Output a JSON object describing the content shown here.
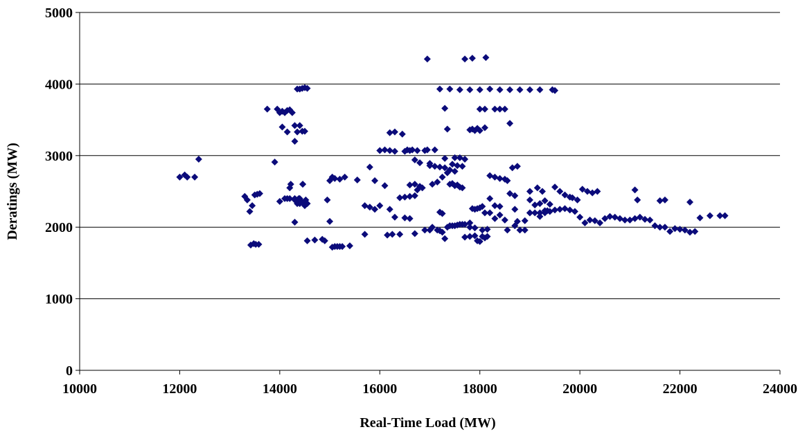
{
  "chart_data": {
    "type": "scatter",
    "title": "",
    "xlabel": "Real-Time Load (MW)",
    "ylabel": "Deratings (MW)",
    "xlim": [
      10000,
      24000
    ],
    "ylim": [
      0,
      5000
    ],
    "xticks": [
      10000,
      12000,
      14000,
      16000,
      18000,
      20000,
      22000,
      24000
    ],
    "yticks": [
      0,
      1000,
      2000,
      3000,
      4000,
      5000
    ],
    "grid": "horizontal",
    "legend": "none",
    "marker": "diamond",
    "marker_color": "#0b0b7a",
    "x": [
      12000,
      12100,
      12150,
      12300,
      12380,
      13300,
      13350,
      13400,
      13450,
      13500,
      13550,
      13600,
      13420,
      13480,
      13520,
      13580,
      13750,
      13900,
      13950,
      14000,
      14050,
      14100,
      14150,
      14200,
      14250,
      14050,
      14150,
      14300,
      14350,
      14400,
      14450,
      14500,
      14300,
      14350,
      14400,
      14450,
      14500,
      14550,
      14150,
      14200,
      14220,
      14300,
      14350,
      14400,
      14450,
      14500,
      14550,
      14300,
      14350,
      14400,
      14460,
      14520,
      14000,
      14100,
      14200,
      14300,
      14380,
      14460,
      14550,
      14700,
      14850,
      14900,
      14950,
      15000,
      15050,
      15100,
      15150,
      15200,
      15250,
      15000,
      15050,
      15100,
      15200,
      15300,
      15400,
      15550,
      15700,
      15800,
      15900,
      16000,
      15700,
      15800,
      15900,
      16100,
      16200,
      16300,
      16400,
      16500,
      16600,
      16700,
      16150,
      16250,
      16400,
      16500,
      16600,
      16700,
      16200,
      16300,
      16450,
      16550,
      16650,
      16750,
      16600,
      16700,
      16800,
      16900,
      16950,
      17000,
      17100,
      16900,
      17000,
      17050,
      17150,
      17200,
      17250,
      17300,
      17350,
      17400,
      17450,
      17500,
      17550,
      17600,
      17650,
      17700,
      17800,
      17850,
      17900,
      17950,
      18000,
      18050,
      18100,
      18150,
      17700,
      17800,
      17900,
      17950,
      18000,
      18050,
      18100,
      18200,
      18300,
      18400,
      18500,
      18550,
      18600,
      18700,
      18800,
      18900,
      19000,
      19100,
      19200,
      19300,
      19400,
      19500,
      19600,
      19700,
      19800,
      19900,
      20000,
      20100,
      20200,
      20300,
      20400,
      20500,
      20600,
      20700,
      20800,
      20900,
      21000,
      21100,
      21200,
      21300,
      21400,
      21500,
      21600,
      21700,
      21800,
      21900,
      22000,
      22100,
      22200,
      22300,
      22400,
      22600,
      22800,
      22900,
      16950,
      17700,
      17850,
      18120,
      17200,
      17400,
      17600,
      17800,
      18000,
      18200,
      18400,
      18600,
      18800,
      19000,
      19200,
      19450,
      19500,
      18000,
      18100,
      18300,
      18400,
      18500,
      18600,
      17300,
      17500,
      17600,
      17700,
      17450,
      17550,
      17650,
      17350,
      17250,
      17150,
      17050,
      16850,
      16750,
      17400,
      17450,
      17500,
      17550,
      17600,
      17650,
      16000,
      16100,
      16200,
      16300,
      16500,
      16600,
      16700,
      16800,
      17000,
      17100,
      17200,
      17300,
      17400,
      17500,
      18200,
      18300,
      18400,
      18500,
      18550,
      18650,
      18750,
      19000,
      19150,
      19250,
      19500,
      19600,
      19700,
      19800,
      19850,
      19950,
      20050,
      20150,
      20250,
      20350,
      21100,
      21150,
      21600,
      21700,
      22200,
      18050,
      18150,
      17900,
      17800,
      18700,
      18750,
      18900,
      19000,
      19100,
      19200,
      19300,
      19350,
      17200,
      17250,
      17300,
      17350,
      17800,
      17850,
      17900,
      17950,
      18000,
      18100,
      18200,
      18300,
      18400,
      18700,
      19000,
      19200,
      19300,
      19400
    ],
    "y": [
      2700,
      2730,
      2700,
      2700,
      2950,
      2430,
      2380,
      2220,
      2300,
      2450,
      2460,
      2470,
      1750,
      1770,
      1760,
      1760,
      3650,
      2910,
      3650,
      3600,
      3620,
      3600,
      3630,
      3640,
      3600,
      3400,
      3330,
      3420,
      3330,
      3420,
      3340,
      3340,
      3200,
      3930,
      3930,
      3940,
      3950,
      3940,
      2400,
      2550,
      2600,
      2400,
      2380,
      2400,
      2350,
      2300,
      2330,
      2070,
      2330,
      2330,
      2600,
      2380,
      2360,
      2400,
      2400,
      2380,
      2400,
      2600,
      1810,
      1820,
      1830,
      1810,
      2380,
      2080,
      1720,
      1730,
      1730,
      1730,
      1730,
      2650,
      2700,
      2680,
      2670,
      2700,
      1740,
      2660,
      2300,
      2280,
      2250,
      2300,
      1900,
      2840,
      2650,
      2580,
      2250,
      2140,
      2410,
      2420,
      2430,
      2440,
      1890,
      1900,
      1900,
      2130,
      2120,
      1910,
      3320,
      3330,
      3300,
      3080,
      3080,
      3070,
      2590,
      2600,
      2570,
      3070,
      3080,
      2890,
      3080,
      1960,
      1960,
      2000,
      1960,
      1950,
      1930,
      1840,
      2000,
      2020,
      2020,
      2020,
      2030,
      2040,
      2040,
      2040,
      2060,
      2260,
      2250,
      2260,
      2270,
      2290,
      1850,
      1870,
      1860,
      1870,
      1880,
      1810,
      1800,
      1870,
      2200,
      2200,
      2120,
      2170,
      2100,
      1960,
      2470,
      2440,
      1960,
      1960,
      2200,
      2200,
      2200,
      2230,
      2220,
      2240,
      2250,
      2260,
      2240,
      2220,
      2140,
      2060,
      2100,
      2090,
      2060,
      2120,
      2150,
      2140,
      2120,
      2100,
      2100,
      2120,
      2140,
      2110,
      2100,
      2020,
      2000,
      2000,
      1940,
      1980,
      1970,
      1960,
      1930,
      1940,
      2130,
      2160,
      2160,
      2160,
      4350,
      4350,
      4360,
      4370,
      3930,
      3930,
      3920,
      3920,
      3920,
      3930,
      3920,
      3920,
      3920,
      3920,
      3920,
      3920,
      3910,
      3650,
      3650,
      3650,
      3650,
      3650,
      3450,
      2960,
      2970,
      2970,
      2950,
      2880,
      2860,
      2850,
      2760,
      2700,
      2630,
      2600,
      2550,
      2520,
      2600,
      2610,
      2580,
      2590,
      2560,
      2550,
      3070,
      3080,
      3070,
      3060,
      3060,
      3070,
      2940,
      2900,
      2860,
      2850,
      2840,
      2830,
      2800,
      2780,
      2720,
      2700,
      2680,
      2670,
      2650,
      2830,
      2850,
      2500,
      2550,
      2500,
      2560,
      2500,
      2450,
      2420,
      2410,
      2380,
      2530,
      2500,
      2480,
      2500,
      2520,
      2380,
      2370,
      2380,
      2350,
      1960,
      1970,
      1990,
      2000,
      2020,
      2080,
      2090,
      2200,
      2310,
      2150,
      2200,
      2230,
      2210,
      2190,
      3660,
      3370,
      3360,
      3370,
      3350,
      3380,
      3350,
      3390,
      2400,
      2300,
      2290,
      2250,
      2380,
      2330,
      2370,
      2320
    ]
  }
}
